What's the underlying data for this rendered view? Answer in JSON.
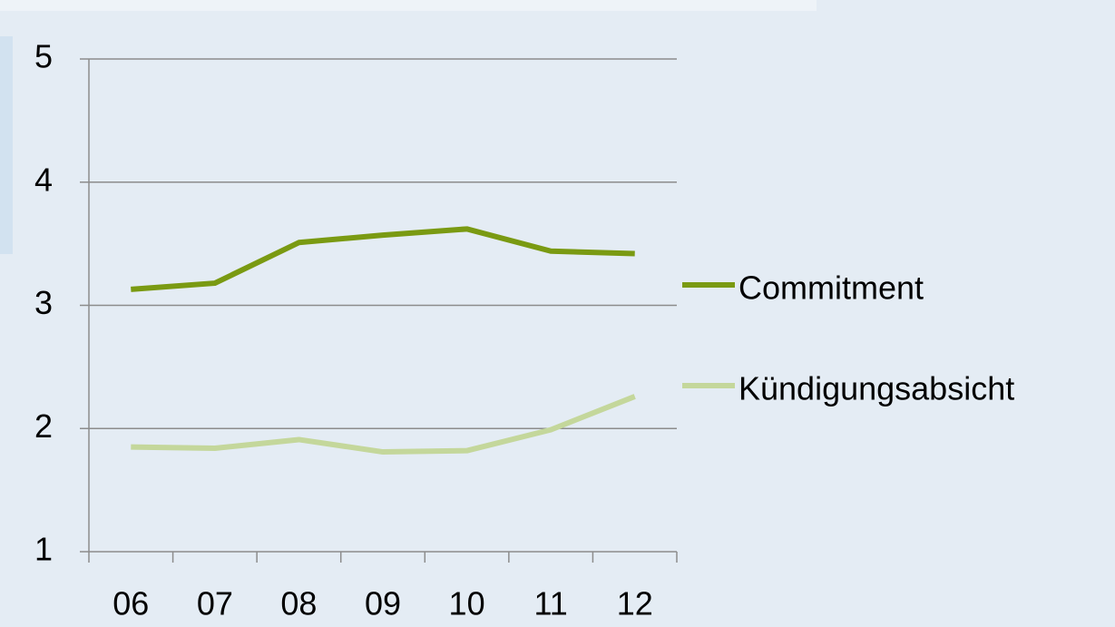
{
  "chart_data": {
    "type": "line",
    "categories": [
      "06",
      "07",
      "08",
      "09",
      "10",
      "11",
      "12"
    ],
    "series": [
      {
        "name": "Commitment",
        "color": "#7a9a12",
        "values": [
          3.13,
          3.18,
          3.51,
          3.57,
          3.62,
          3.44,
          3.42
        ]
      },
      {
        "name": "Kündigungsabsicht",
        "color": "#c4d79b",
        "values": [
          1.85,
          1.84,
          1.91,
          1.81,
          1.82,
          1.99,
          2.26
        ]
      }
    ],
    "ylim": [
      1,
      5
    ],
    "yticks": [
      1,
      2,
      3,
      4,
      5
    ],
    "grid": true,
    "legend": "right"
  }
}
